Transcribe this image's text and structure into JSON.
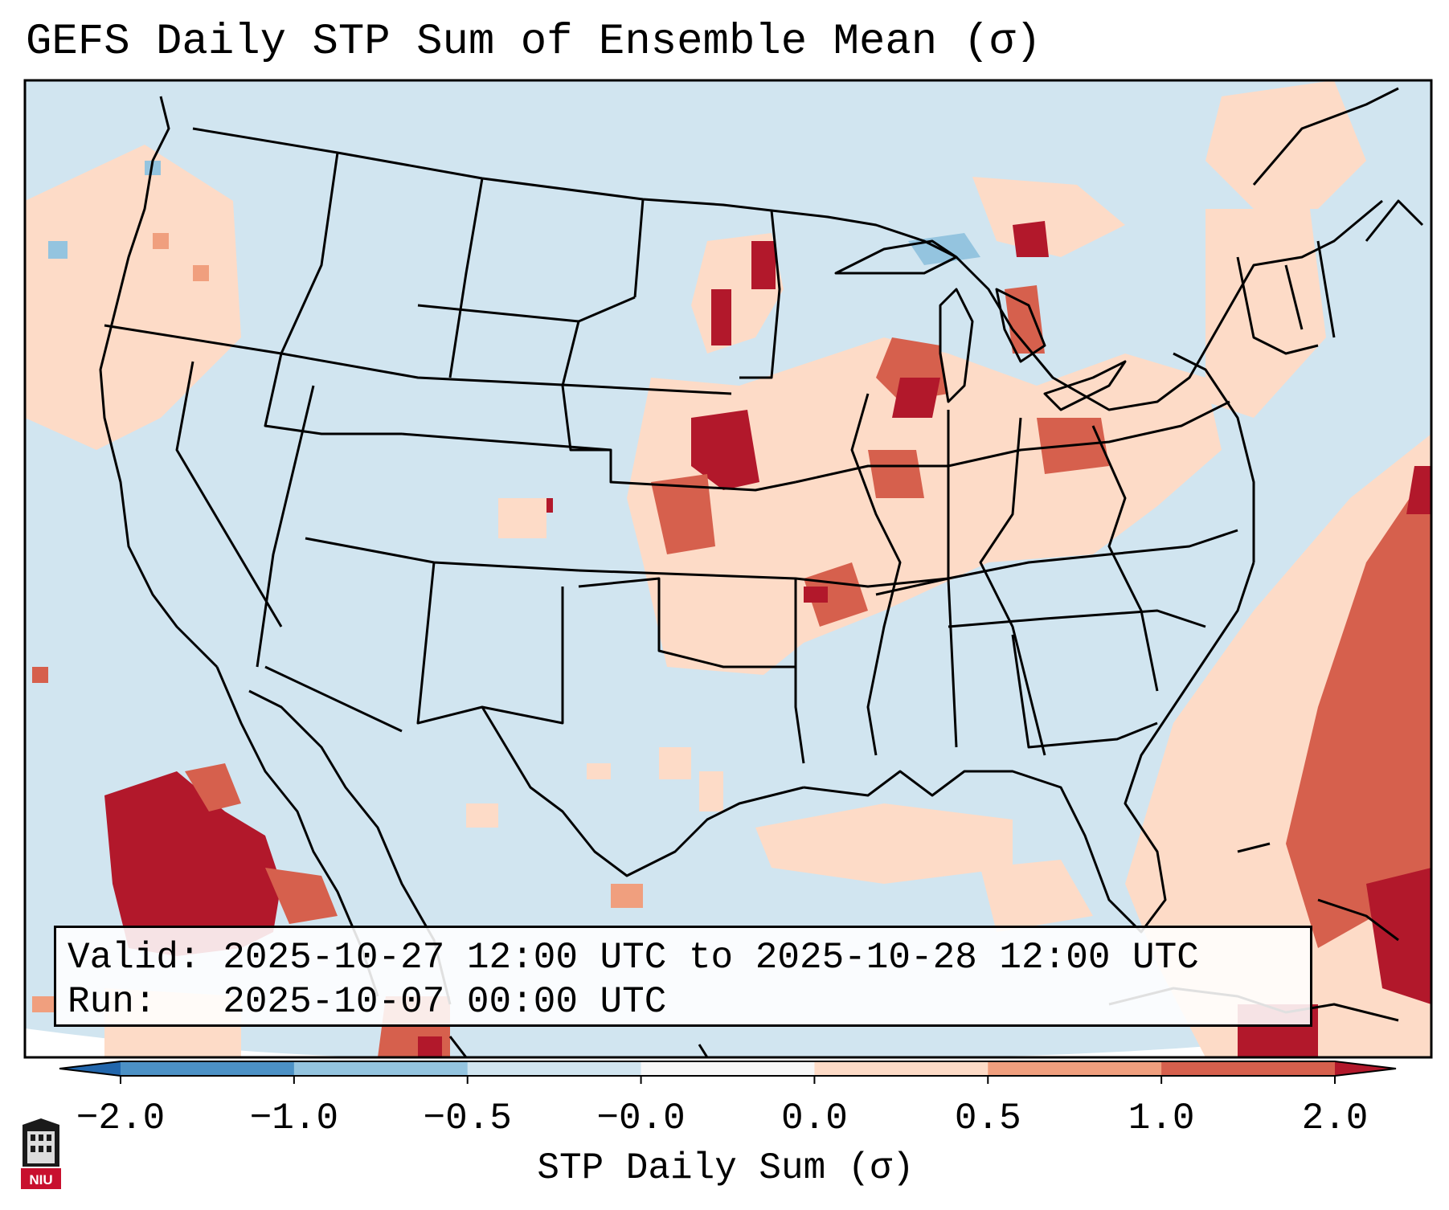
{
  "title": "GEFS Daily STP Sum of Ensemble Mean (σ)",
  "info": {
    "valid_label": "Valid:",
    "valid_value": "2025-10-27 12:00 UTC to 2025-10-28 12:00 UTC",
    "run_label": "Run:",
    "run_value": "2025-10-07 00:00 UTC"
  },
  "colorbar": {
    "label": "STP Daily Sum (σ)",
    "ticks": [
      "−2.0",
      "−1.0",
      "−0.5",
      "−0.0",
      "0.0",
      "0.5",
      "1.0",
      "2.0"
    ],
    "bins": [
      {
        "from": "-2.0",
        "to": "-1.0",
        "color": "#4c91c5"
      },
      {
        "from": "-1.0",
        "to": "-0.5",
        "color": "#94c4df"
      },
      {
        "from": "-0.5",
        "to": "-0.0",
        "color": "#d1e5f0"
      },
      {
        "from": "-0.0",
        "to": "0.0",
        "color": "#f7f7f7"
      },
      {
        "from": "0.0",
        "to": "0.5",
        "color": "#fddbc7"
      },
      {
        "from": "0.5",
        "to": "1.0",
        "color": "#f09f7e"
      },
      {
        "from": "1.0",
        "to": "2.0",
        "color": "#d6604d"
      }
    ],
    "under_color": "#2166ac",
    "over_color": "#b2182b"
  },
  "logo": {
    "text": "NIU",
    "icon": "niu-logo-icon"
  },
  "colors": {
    "background_field": "#d1e5f0"
  }
}
